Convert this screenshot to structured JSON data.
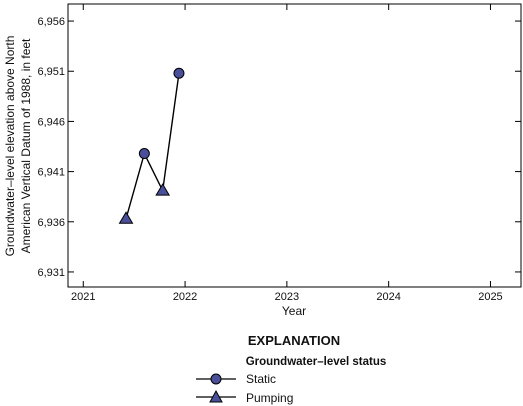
{
  "chart_data": {
    "type": "line",
    "xlabel": "Year",
    "ylabel_lines": [
      "Groundwater–level elevation above North",
      "American Vertical Datum of 1988, in feet"
    ],
    "xlim": [
      2020.85,
      2025.3
    ],
    "ylim": [
      6929.5,
      6957.7
    ],
    "x_ticks": [
      2021,
      2022,
      2023,
      2024,
      2025
    ],
    "x_tick_labels": [
      "2021",
      "2022",
      "2023",
      "2024",
      "2025"
    ],
    "y_ticks": [
      6931,
      6936,
      6941,
      6946,
      6951,
      6956
    ],
    "y_tick_labels": [
      "6,931",
      "6,936",
      "6,941",
      "6,946",
      "6,951",
      "6,956"
    ],
    "grid": false,
    "series": [
      {
        "points": [
          {
            "x": 2021.42,
            "y": 6936.3,
            "status": "Pumping"
          },
          {
            "x": 2021.6,
            "y": 6942.8,
            "status": "Static"
          },
          {
            "x": 2021.78,
            "y": 6939.1,
            "status": "Pumping"
          },
          {
            "x": 2021.94,
            "y": 6950.8,
            "status": "Static"
          }
        ]
      }
    ],
    "legend": {
      "title": "EXPLANATION",
      "subtitle": "Groundwater–level status",
      "items": [
        {
          "label": "Static",
          "marker": "circle"
        },
        {
          "label": "Pumping",
          "marker": "triangle"
        }
      ]
    },
    "colors": {
      "marker_fill": "#4a4f9a",
      "line": "#000000"
    }
  }
}
